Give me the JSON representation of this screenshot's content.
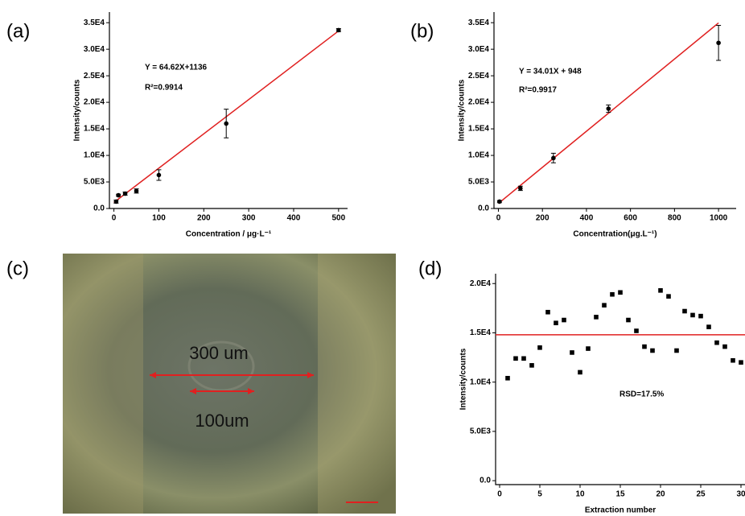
{
  "chart_data": [
    {
      "type": "scatter",
      "label": "(a)",
      "x": [
        5,
        10,
        25,
        50,
        100,
        250,
        500
      ],
      "values": [
        1300,
        2500,
        2800,
        3300,
        6300,
        16000,
        33600
      ],
      "errors": [
        300,
        200,
        300,
        400,
        1000,
        2700,
        300
      ],
      "color": "#000000",
      "xlim": [
        -10,
        520
      ],
      "ylim": [
        0,
        37000
      ],
      "xticks": [
        0,
        100,
        200,
        300,
        400,
        500
      ],
      "yticks": [
        {
          "value": 0,
          "label": "0.0"
        },
        {
          "value": 5000,
          "label": "5.0E3"
        },
        {
          "value": 10000,
          "label": "1.0E4"
        },
        {
          "value": 15000,
          "label": "1.5E4"
        },
        {
          "value": 20000,
          "label": "2.0E4"
        },
        {
          "value": 25000,
          "label": "2.5E4"
        },
        {
          "value": 30000,
          "label": "3.0E4"
        },
        {
          "value": 35000,
          "label": "3.5E4"
        }
      ],
      "x_label": "Concentration / μg·L⁻¹",
      "y_label": "Intensity/counts",
      "fit": {
        "slope": 64.62,
        "intercept": 1136,
        "x_range": [
          0,
          500
        ],
        "color": "#e02020"
      },
      "annotations": [
        "Y = 64.62X+1136",
        "R²=0.9914"
      ]
    },
    {
      "type": "scatter",
      "label": "(b)",
      "x": [
        5,
        100,
        250,
        500,
        1000
      ],
      "values": [
        1300,
        3800,
        9500,
        18800,
        31200
      ],
      "errors": [
        200,
        400,
        900,
        700,
        3300
      ],
      "color": "#000000",
      "xlim": [
        -20,
        1080
      ],
      "ylim": [
        0,
        37000
      ],
      "xticks": [
        0,
        200,
        400,
        600,
        800,
        1000
      ],
      "yticks": [
        {
          "value": 0,
          "label": "0.0"
        },
        {
          "value": 5000,
          "label": "5.0E3"
        },
        {
          "value": 10000,
          "label": "1.0E4"
        },
        {
          "value": 15000,
          "label": "1.5E4"
        },
        {
          "value": 20000,
          "label": "2.0E4"
        },
        {
          "value": 25000,
          "label": "2.5E4"
        },
        {
          "value": 30000,
          "label": "3.0E4"
        },
        {
          "value": 35000,
          "label": "3.5E4"
        }
      ],
      "x_label": "Concentration(μg.L⁻¹)",
      "y_label": "Intensity/counts",
      "fit": {
        "slope": 34.01,
        "intercept": 948,
        "x_range": [
          0,
          1000
        ],
        "color": "#e02020"
      },
      "annotations": [
        "Y = 34.01X + 948",
        "R²=0.9917"
      ]
    },
    {
      "type": "scatter",
      "label": "(d)",
      "x": [
        1,
        2,
        3,
        4,
        5,
        6,
        7,
        8,
        9,
        10,
        11,
        12,
        13,
        14,
        15,
        16,
        17,
        18,
        19,
        20,
        21,
        22,
        23,
        24,
        25,
        26,
        27,
        28,
        29,
        30
      ],
      "values": [
        10400,
        12400,
        12400,
        11700,
        13500,
        17100,
        16000,
        16300,
        13000,
        11000,
        13400,
        16600,
        17800,
        18900,
        19100,
        16300,
        15200,
        13600,
        13200,
        19300,
        18700,
        13200,
        17200,
        16800,
        16700,
        15600,
        14000,
        13600,
        12200,
        12000
      ],
      "color": "#000000",
      "xlim": [
        -0.5,
        30.5
      ],
      "ylim": [
        -400,
        21000
      ],
      "xticks": [
        0,
        5,
        10,
        15,
        20,
        25,
        30
      ],
      "yticks": [
        {
          "value": 0,
          "label": "0.0"
        },
        {
          "value": 5000,
          "label": "5.0E3"
        },
        {
          "value": 10000,
          "label": "1.0E4"
        },
        {
          "value": 15000,
          "label": "1.5E4"
        },
        {
          "value": 20000,
          "label": "2.0E4"
        }
      ],
      "x_label": "Extraction number",
      "y_label": "Intensity/counts",
      "reference_line": {
        "value": 14800,
        "color": "#e02020"
      },
      "annotations": [
        "RSD=17.5%"
      ]
    }
  ],
  "image": {
    "label": "(c)",
    "annotations": [
      "300 um",
      "100um"
    ]
  }
}
